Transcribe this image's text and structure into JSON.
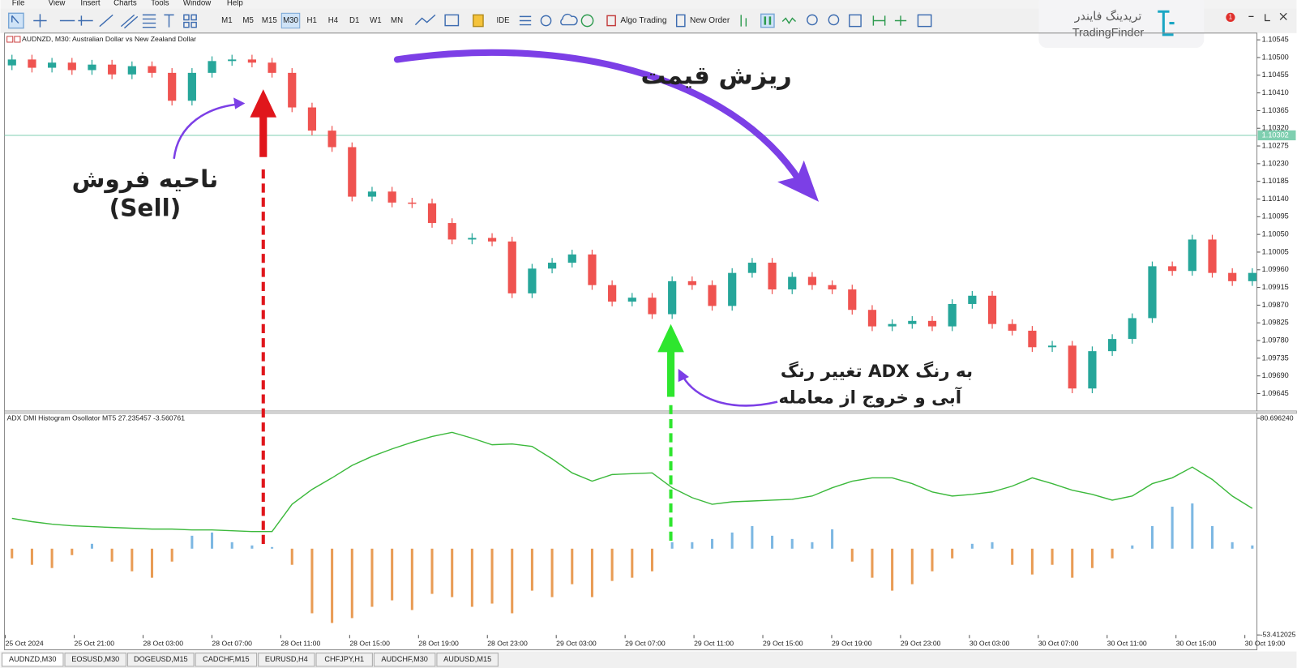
{
  "menu": [
    "File",
    "View",
    "Insert",
    "Charts",
    "Tools",
    "Window",
    "Help"
  ],
  "toolbar": {
    "timeframes": [
      "M1",
      "M5",
      "M15",
      "M30",
      "H1",
      "H4",
      "D1",
      "W1",
      "MN"
    ],
    "active_timeframe": 3,
    "ide": "IDE",
    "algo_trading": "Algo Trading",
    "new_order": "New Order"
  },
  "logo": {
    "name_fa": "تریدینگ فایندر",
    "name_en": "TradingFinder"
  },
  "notification_count": 1,
  "chart_data": [
    {
      "type": "candlestick",
      "title": "AUDNZD, M30:  Australian Dollar vs New Zealand Dollar",
      "up_color": "#26a69a",
      "down_color": "#ef5350",
      "open": [
        1.1048,
        1.10495,
        1.10474,
        1.10487,
        1.10468,
        1.10482,
        1.10457,
        1.10478,
        1.10461,
        1.1039,
        1.10461,
        1.10491,
        1.10495,
        1.10487,
        1.10461,
        1.10373,
        1.10314,
        1.10272,
        1.10146,
        1.10159,
        1.10131,
        1.10129,
        1.10079,
        1.10037,
        1.10041,
        1.10032,
        1.099,
        1.09963,
        1.09978,
        1.09999,
        1.09921,
        1.09879,
        1.09889,
        1.09847,
        1.09931,
        1.09921,
        1.09868,
        1.09952,
        1.09978,
        1.0991,
        1.09942,
        1.09921,
        1.0991,
        1.09858,
        1.09816,
        1.09822,
        1.0983,
        1.09816,
        1.09873,
        1.09894,
        1.09822,
        1.09805,
        1.09763,
        1.09767,
        1.09658,
        1.09753,
        1.09784,
        1.09837,
        1.09969,
        1.09957,
        1.10037,
        1.09952,
        1.09931
      ],
      "high": [
        1.10507,
        1.10507,
        1.10499,
        1.10499,
        1.10494,
        1.10494,
        1.1049,
        1.1049,
        1.10473,
        1.10473,
        1.10503,
        1.10507,
        1.10507,
        1.10499,
        1.10473,
        1.10385,
        1.10326,
        1.10284,
        1.10171,
        1.10171,
        1.10143,
        1.10141,
        1.10091,
        1.10053,
        1.10053,
        1.10044,
        1.09975,
        1.0999,
        1.10011,
        1.10011,
        1.09933,
        1.09901,
        1.09901,
        1.09943,
        1.09943,
        1.09933,
        1.09964,
        1.0999,
        1.0999,
        1.09954,
        1.09954,
        1.09933,
        1.09922,
        1.0987,
        1.09834,
        1.09842,
        1.09842,
        1.09885,
        1.09906,
        1.09906,
        1.09834,
        1.09817,
        1.09779,
        1.09779,
        1.09765,
        1.09796,
        1.09849,
        1.09981,
        1.09981,
        1.10049,
        1.10049,
        1.09964,
        1.09964
      ],
      "low": [
        1.10468,
        1.10462,
        1.10462,
        1.10456,
        1.10456,
        1.10445,
        1.10445,
        1.10449,
        1.10378,
        1.10378,
        1.10449,
        1.10479,
        1.10475,
        1.10449,
        1.10361,
        1.10302,
        1.1026,
        1.10134,
        1.10134,
        1.10119,
        1.10117,
        1.10067,
        1.10025,
        1.10025,
        1.1002,
        1.09888,
        1.09888,
        1.09951,
        1.09966,
        1.09909,
        1.09867,
        1.09867,
        1.09835,
        1.09835,
        1.09909,
        1.09856,
        1.09856,
        1.0994,
        1.09898,
        1.09898,
        1.09909,
        1.09898,
        1.09846,
        1.09804,
        1.09804,
        1.0981,
        1.09804,
        1.09804,
        1.09861,
        1.0981,
        1.09793,
        1.09751,
        1.09751,
        1.09646,
        1.09646,
        1.09741,
        1.09772,
        1.09825,
        1.09945,
        1.09945,
        1.0994,
        1.09919,
        1.09919
      ],
      "close": [
        1.10495,
        1.10474,
        1.10487,
        1.10468,
        1.10482,
        1.10457,
        1.10478,
        1.10461,
        1.1039,
        1.10461,
        1.10491,
        1.10495,
        1.10487,
        1.10461,
        1.10373,
        1.10314,
        1.10272,
        1.10146,
        1.10159,
        1.10131,
        1.10129,
        1.10079,
        1.10037,
        1.10041,
        1.10032,
        1.099,
        1.09963,
        1.09978,
        1.09999,
        1.09921,
        1.09879,
        1.09889,
        1.09847,
        1.09931,
        1.09921,
        1.09868,
        1.09952,
        1.09978,
        1.0991,
        1.09942,
        1.09921,
        1.0991,
        1.09858,
        1.09816,
        1.09822,
        1.0983,
        1.09816,
        1.09873,
        1.09894,
        1.09822,
        1.09805,
        1.09763,
        1.09767,
        1.09658,
        1.09753,
        1.09784,
        1.09837,
        1.09969,
        1.09957,
        1.10037,
        1.09952,
        1.09931,
        1.09952
      ],
      "ylim": [
        1.09601,
        1.10558
      ],
      "yticks": [
        {
          "value": 1.10545,
          "label": "1.10545"
        },
        {
          "value": 1.105,
          "label": "1.10500"
        },
        {
          "value": 1.10455,
          "label": "1.10455"
        },
        {
          "value": 1.1041,
          "label": "1.10410"
        },
        {
          "value": 1.10365,
          "label": "1.10365"
        },
        {
          "value": 1.1032,
          "label": "1.10320"
        },
        {
          "value": 1.10275,
          "label": "1.10275"
        },
        {
          "value": 1.1023,
          "label": "1.10230"
        },
        {
          "value": 1.10185,
          "label": "1.10185"
        },
        {
          "value": 1.1014,
          "label": "1.10140"
        },
        {
          "value": 1.10095,
          "label": "1.10095"
        },
        {
          "value": 1.1005,
          "label": "1.10050"
        },
        {
          "value": 1.10005,
          "label": "1.10005"
        },
        {
          "value": 1.0996,
          "label": "1.09960"
        },
        {
          "value": 1.09915,
          "label": "1.09915"
        },
        {
          "value": 1.0987,
          "label": "1.09870"
        },
        {
          "value": 1.09825,
          "label": "1.09825"
        },
        {
          "value": 1.0978,
          "label": "1.09780"
        },
        {
          "value": 1.09735,
          "label": "1.09735"
        },
        {
          "value": 1.0969,
          "label": "1.09690"
        },
        {
          "value": 1.09645,
          "label": "1.09645"
        }
      ],
      "current_price": {
        "value": 1.10302,
        "label": "1.10302"
      },
      "current_price_color": "#7fcfb0"
    },
    {
      "type": "line_histogram",
      "title": "ADX DMI Histogram Osollator MT5 27.235457 -3.560761",
      "line": {
        "color": "#3cb93c",
        "values": [
          18.77,
          16.72,
          15.19,
          14.16,
          13.65,
          13.14,
          12.63,
          12.12,
          12.12,
          11.61,
          11.61,
          11.09,
          10.58,
          10.58,
          27.47,
          36.68,
          43.85,
          51.53,
          57.15,
          61.76,
          65.85,
          69.44,
          72.0,
          68.41,
          64.32,
          64.83,
          63.29,
          55.62,
          46.92,
          41.8,
          45.89,
          46.41,
          46.92,
          37.71,
          31.57,
          27.47,
          29.0,
          29.52,
          30.03,
          30.54,
          32.59,
          37.71,
          41.8,
          43.85,
          43.85,
          40.26,
          35.15,
          32.59,
          33.61,
          35.15,
          38.73,
          43.85,
          40.26,
          36.17,
          33.61,
          30.03,
          32.59,
          40.26,
          43.85,
          50.5,
          42.82,
          32.59,
          24.91
        ]
      },
      "histogram": {
        "positive_color": "#7db8e3",
        "negative_color": "#e99c55",
        "values": [
          -6,
          -10,
          -12,
          -4,
          3,
          -8,
          -14,
          -18,
          -8,
          8,
          10,
          4,
          2,
          1,
          -10,
          -40,
          -46,
          -43,
          -36,
          -32,
          -38,
          -28,
          -30,
          -36,
          -34,
          -40,
          -26,
          -30,
          -22,
          -30,
          -20,
          -18,
          -14,
          4,
          4,
          6,
          10,
          14,
          8,
          6,
          4,
          12,
          -8,
          -18,
          -26,
          -22,
          -14,
          -6,
          3,
          4,
          -10,
          -16,
          -10,
          -18,
          -12,
          -6,
          2,
          14,
          26,
          28,
          14,
          4,
          2
        ]
      },
      "ylim": [
        -53.412025,
        80.69624
      ],
      "yticks": [
        {
          "value": 80.69624,
          "label": "80.696240"
        },
        {
          "value": -53.412025,
          "label": "-53.412025"
        }
      ]
    }
  ],
  "time_labels": [
    "25 Oct 2024",
    "25 Oct 21:00",
    "28 Oct 03:00",
    "28 Oct 07:00",
    "28 Oct 11:00",
    "28 Oct 15:00",
    "28 Oct 19:00",
    "28 Oct 23:00",
    "29 Oct 03:00",
    "29 Oct 07:00",
    "29 Oct 11:00",
    "29 Oct 15:00",
    "29 Oct 19:00",
    "29 Oct 23:00",
    "30 Oct 03:00",
    "30 Oct 07:00",
    "30 Oct 11:00",
    "30 Oct 15:00",
    "30 Oct 19:00"
  ],
  "annotations": {
    "price_drop": "ریزش قیمت",
    "sell_zone": "ناحیه فروش",
    "sell": "(Sell)",
    "adx_change_1": "تغییر رنگ ADX به رنگ",
    "adx_change_2": "آبی و خروج از معامله"
  },
  "tabs": [
    "AUDNZD,M30",
    "EOSUSD,M30",
    "DOGEUSD,M15",
    "CADCHF,M15",
    "EURUSD,H4",
    "CHFJPY,H1",
    "AUDCHF,M30",
    "AUDUSD,M15"
  ],
  "active_tab": 0
}
